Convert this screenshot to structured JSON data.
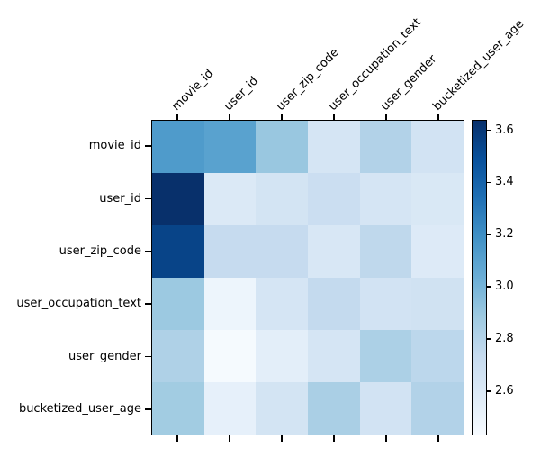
{
  "chart_data": {
    "type": "heatmap",
    "title": "",
    "xlabel": "",
    "ylabel": "",
    "columns": [
      "movie_id",
      "user_id",
      "user_zip_code",
      "user_occupation_text",
      "user_gender",
      "bucketized_user_age"
    ],
    "rows": [
      "movie_id",
      "user_id",
      "user_zip_code",
      "user_occupation_text",
      "user_gender",
      "bucketized_user_age"
    ],
    "values": [
      [
        3.14,
        3.1,
        2.9,
        2.64,
        2.81,
        2.66
      ],
      [
        3.64,
        2.6,
        2.65,
        2.7,
        2.64,
        2.61
      ],
      [
        3.55,
        2.73,
        2.73,
        2.62,
        2.76,
        2.59
      ],
      [
        2.89,
        2.49,
        2.64,
        2.74,
        2.66,
        2.67
      ],
      [
        2.82,
        2.44,
        2.55,
        2.64,
        2.83,
        2.77
      ],
      [
        2.87,
        2.53,
        2.65,
        2.84,
        2.66,
        2.81
      ]
    ],
    "colormap": "Blues",
    "colormap_min_color": "#f7fbff",
    "colormap_max_color": "#08306b",
    "vmin": 2.43,
    "vmax": 3.64,
    "colorbar_ticks": [
      2.6,
      2.8,
      3.0,
      3.2,
      3.4,
      3.6
    ],
    "colorbar_tick_labels": [
      "2.6",
      "2.8",
      "3.0",
      "3.2",
      "3.4",
      "3.6"
    ],
    "grid": false,
    "legend_position": "right-colorbar",
    "background_color": "#ffffff",
    "axes_edge_color": "#000000"
  }
}
